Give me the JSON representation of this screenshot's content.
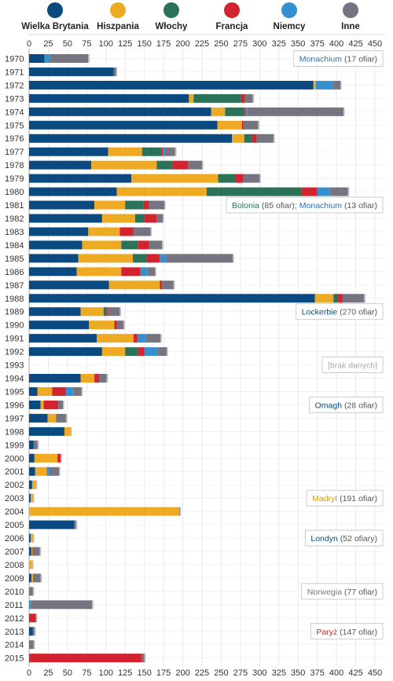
{
  "chart_data": {
    "type": "bar",
    "stacked": true,
    "orientation": "horizontal",
    "xlim": [
      0,
      450
    ],
    "xticks": [
      "0",
      "25",
      "50",
      "75",
      "100",
      "125",
      "150",
      "175",
      "200",
      "225",
      "250",
      "275",
      "300",
      "325",
      "350",
      "375",
      "400",
      "425",
      "450"
    ],
    "legend_position": "top",
    "series": [
      {
        "name": "Wielka Brytania",
        "color": "#0b4a80"
      },
      {
        "name": "Hiszpania",
        "color": "#eeaa22"
      },
      {
        "name": "Włochy",
        "color": "#2b7358"
      },
      {
        "name": "Francja",
        "color": "#d2232e"
      },
      {
        "name": "Niemcy",
        "color": "#3590d0"
      },
      {
        "name": "Inne",
        "color": "#757480"
      }
    ],
    "categories": [
      "1970",
      "1971",
      "1972",
      "1973",
      "1974",
      "1975",
      "1976",
      "1977",
      "1978",
      "1979",
      "1980",
      "1981",
      "1982",
      "1983",
      "1984",
      "1985",
      "1986",
      "1987",
      "1988",
      "1989",
      "1990",
      "1991",
      "1992",
      "1993",
      "1994",
      "1995",
      "1996",
      "1997",
      "1998",
      "1999",
      "2000",
      "2001",
      "2002",
      "2003",
      "2004",
      "2005",
      "2006",
      "2007",
      "2008",
      "2009",
      "2010",
      "2011",
      "2012",
      "2013",
      "2014",
      "2015"
    ],
    "values": [
      [
        20,
        0,
        0,
        0,
        7,
        50
      ],
      [
        110,
        0,
        0,
        0,
        0,
        3
      ],
      [
        370,
        3,
        0,
        0,
        22,
        10
      ],
      [
        208,
        6,
        62,
        5,
        0,
        10
      ],
      [
        237,
        18,
        25,
        2,
        2,
        125
      ],
      [
        245,
        32,
        0,
        2,
        0,
        19
      ],
      [
        264,
        16,
        10,
        6,
        0,
        22
      ],
      [
        103,
        44,
        25,
        2,
        2,
        14
      ],
      [
        81,
        85,
        20,
        21,
        0,
        18
      ],
      [
        133,
        113,
        23,
        10,
        0,
        21
      ],
      [
        114,
        117,
        124,
        20,
        16,
        24
      ],
      [
        85,
        40,
        24,
        7,
        0,
        20
      ],
      [
        95,
        43,
        12,
        16,
        0,
        8
      ],
      [
        77,
        41,
        0,
        18,
        0,
        22
      ],
      [
        69,
        51,
        22,
        14,
        0,
        17
      ],
      [
        64,
        71,
        18,
        17,
        9,
        86
      ],
      [
        62,
        58,
        0,
        25,
        9,
        10
      ],
      [
        104,
        66,
        0,
        3,
        0,
        15
      ],
      [
        372,
        24,
        6,
        6,
        0,
        28
      ],
      [
        67,
        30,
        3,
        2,
        0,
        16
      ],
      [
        78,
        33,
        0,
        3,
        0,
        9
      ],
      [
        88,
        48,
        0,
        5,
        11,
        19
      ],
      [
        95,
        30,
        17,
        8,
        17,
        12
      ],
      [
        0,
        0,
        0,
        0,
        0,
        0
      ],
      [
        67,
        18,
        0,
        6,
        0,
        10
      ],
      [
        11,
        19,
        0,
        18,
        10,
        10
      ],
      [
        15,
        4,
        0,
        19,
        0,
        6
      ],
      [
        24,
        11,
        0,
        0,
        0,
        13
      ],
      [
        46,
        8,
        0,
        0,
        0,
        0
      ],
      [
        6,
        0,
        0,
        0,
        0,
        5
      ],
      [
        7,
        30,
        0,
        4,
        0,
        0
      ],
      [
        8,
        15,
        0,
        0,
        3,
        13
      ],
      [
        4,
        5,
        0,
        0,
        0,
        0
      ],
      [
        2,
        3,
        0,
        0,
        0,
        0
      ],
      [
        0,
        195,
        0,
        0,
        0,
        1
      ],
      [
        59,
        0,
        0,
        0,
        0,
        2
      ],
      [
        2,
        3,
        0,
        0,
        0,
        0
      ],
      [
        3,
        1,
        0,
        0,
        0,
        10
      ],
      [
        0,
        4,
        0,
        0,
        0,
        0
      ],
      [
        3,
        2,
        0,
        0,
        0,
        10
      ],
      [
        0,
        0,
        0,
        0,
        0,
        5
      ],
      [
        0,
        0,
        0,
        0,
        3,
        79
      ],
      [
        0,
        0,
        0,
        9,
        0,
        0
      ],
      [
        5,
        0,
        0,
        0,
        0,
        2
      ],
      [
        0,
        0,
        0,
        0,
        0,
        6
      ],
      [
        0,
        0,
        0,
        147,
        0,
        3
      ]
    ],
    "annotations": [
      {
        "row": "1970",
        "parts": [
          {
            "text": "Monachium",
            "color": "#2e70b5"
          },
          {
            "text": " (17 ofiar)",
            "color": "#555555"
          }
        ]
      },
      {
        "row": "1981",
        "parts": [
          {
            "text": "Bolonia",
            "color": "#2b7358"
          },
          {
            "text": " (85 ofiar); ",
            "color": "#555555"
          },
          {
            "text": "Monachium",
            "color": "#2e70b5"
          },
          {
            "text": " (13 ofiar)",
            "color": "#555555"
          }
        ]
      },
      {
        "row": "1989",
        "parts": [
          {
            "text": "Lockerbie",
            "color": "#0b4a80"
          },
          {
            "text": " (270 ofiar)",
            "color": "#555555"
          }
        ]
      },
      {
        "row": "1993",
        "parts": [
          {
            "text": "[brak danych]",
            "color": "#aaaaaa"
          }
        ]
      },
      {
        "row": "1996",
        "parts": [
          {
            "text": "Omagh",
            "color": "#0b4a80"
          },
          {
            "text": " (28 ofiar)",
            "color": "#555555"
          }
        ]
      },
      {
        "row": "2003",
        "parts": [
          {
            "text": "Madryt",
            "color": "#d4a020"
          },
          {
            "text": " (191 ofiar)",
            "color": "#555555"
          }
        ]
      },
      {
        "row": "2006",
        "parts": [
          {
            "text": "Londyn",
            "color": "#0b4a80"
          },
          {
            "text": " (52 ofiary)",
            "color": "#555555"
          }
        ]
      },
      {
        "row": "2010",
        "parts": [
          {
            "text": "Norwegia",
            "color": "#757480"
          },
          {
            "text": " (77 ofiar)",
            "color": "#555555"
          }
        ]
      },
      {
        "row": "2013",
        "parts": [
          {
            "text": "Paryż",
            "color": "#d2232e"
          },
          {
            "text": " (147 ofiar)",
            "color": "#555555"
          }
        ]
      }
    ]
  }
}
